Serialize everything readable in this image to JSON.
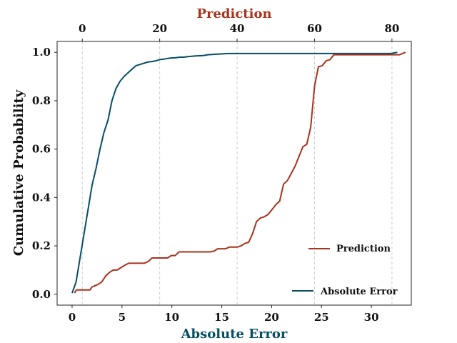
{
  "chart_data": {
    "type": "line",
    "xlabel": "Absolute Error",
    "x2label": "Prediction",
    "ylabel": "Cumulative Probability",
    "xlim": [
      -1.5,
      34
    ],
    "x2lim": [
      -6.5,
      85
    ],
    "ylim": [
      -0.045,
      1.045
    ],
    "x_ticks": [
      0,
      5,
      10,
      15,
      20,
      25,
      30
    ],
    "x2_ticks": [
      0,
      20,
      40,
      60,
      80
    ],
    "y_ticks": [
      "0.0",
      "0.2",
      "0.4",
      "0.6",
      "0.8",
      "1.0"
    ],
    "grid": "vertical dashed at top-axis ticks",
    "colors": {
      "absolute_error": "#064e63",
      "prediction": "#a8321c",
      "grid": "#cccccc"
    },
    "series": [
      {
        "name": "Absolute Error",
        "axis": "bottom",
        "color": "#064e63",
        "legend_position": "lower-right",
        "x": [
          0,
          0.4,
          0.8,
          1.2,
          1.6,
          2.0,
          2.4,
          2.8,
          3.2,
          3.6,
          4.0,
          4.4,
          4.8,
          5.2,
          5.6,
          6.0,
          6.4,
          6.8,
          7.2,
          7.6,
          8.0,
          8.4,
          8.8,
          9.2,
          9.6,
          10.0,
          10.4,
          10.8,
          11.2,
          11.6,
          12.0,
          12.4,
          12.8,
          13.2,
          13.6,
          14.0,
          14.4,
          14.8,
          15.2,
          15.6,
          16.0,
          17,
          18,
          19,
          20,
          22,
          24,
          26,
          28,
          30,
          32,
          32.6
        ],
        "y": [
          0.005,
          0.05,
          0.15,
          0.25,
          0.35,
          0.45,
          0.52,
          0.6,
          0.67,
          0.72,
          0.8,
          0.85,
          0.88,
          0.9,
          0.915,
          0.93,
          0.945,
          0.95,
          0.955,
          0.96,
          0.962,
          0.965,
          0.97,
          0.972,
          0.975,
          0.977,
          0.978,
          0.98,
          0.98,
          0.982,
          0.984,
          0.985,
          0.986,
          0.987,
          0.99,
          0.991,
          0.992,
          0.993,
          0.994,
          0.995,
          0.995,
          0.995,
          0.995,
          0.995,
          0.995,
          0.995,
          0.995,
          0.995,
          0.995,
          0.995,
          0.995,
          1.0
        ]
      },
      {
        "name": "Prediction",
        "axis": "top",
        "color": "#a8321c",
        "legend_position": "right",
        "x": [
          -2,
          -1.5,
          0,
          1,
          2,
          2.5,
          4,
          5,
          6,
          7,
          8,
          9,
          10,
          11,
          12,
          13,
          15,
          16,
          17,
          18,
          19,
          20,
          21,
          22,
          23,
          24,
          25,
          26,
          27,
          28,
          29,
          30,
          31,
          32,
          33,
          34,
          35,
          36,
          37,
          38,
          39,
          40,
          41,
          42,
          43,
          44,
          45,
          46,
          47,
          48,
          49,
          50,
          51,
          52,
          53,
          54,
          55,
          56,
          57,
          58,
          59,
          60,
          61,
          62,
          63,
          64,
          65,
          66,
          67,
          68,
          69,
          70,
          72,
          74,
          76,
          78,
          80,
          82,
          83.5
        ],
        "y": [
          0.005,
          0.018,
          0.018,
          0.018,
          0.018,
          0.03,
          0.04,
          0.05,
          0.075,
          0.09,
          0.1,
          0.1,
          0.11,
          0.12,
          0.128,
          0.128,
          0.128,
          0.128,
          0.135,
          0.15,
          0.15,
          0.15,
          0.15,
          0.15,
          0.16,
          0.16,
          0.175,
          0.175,
          0.175,
          0.175,
          0.175,
          0.175,
          0.175,
          0.175,
          0.175,
          0.178,
          0.188,
          0.188,
          0.188,
          0.195,
          0.195,
          0.195,
          0.2,
          0.21,
          0.215,
          0.25,
          0.3,
          0.315,
          0.32,
          0.33,
          0.35,
          0.37,
          0.385,
          0.455,
          0.47,
          0.5,
          0.53,
          0.57,
          0.61,
          0.62,
          0.69,
          0.86,
          0.94,
          0.945,
          0.965,
          0.97,
          0.99,
          0.99,
          0.99,
          0.99,
          0.99,
          0.99,
          0.99,
          0.99,
          0.99,
          0.99,
          0.99,
          0.99,
          1.0
        ]
      }
    ]
  }
}
